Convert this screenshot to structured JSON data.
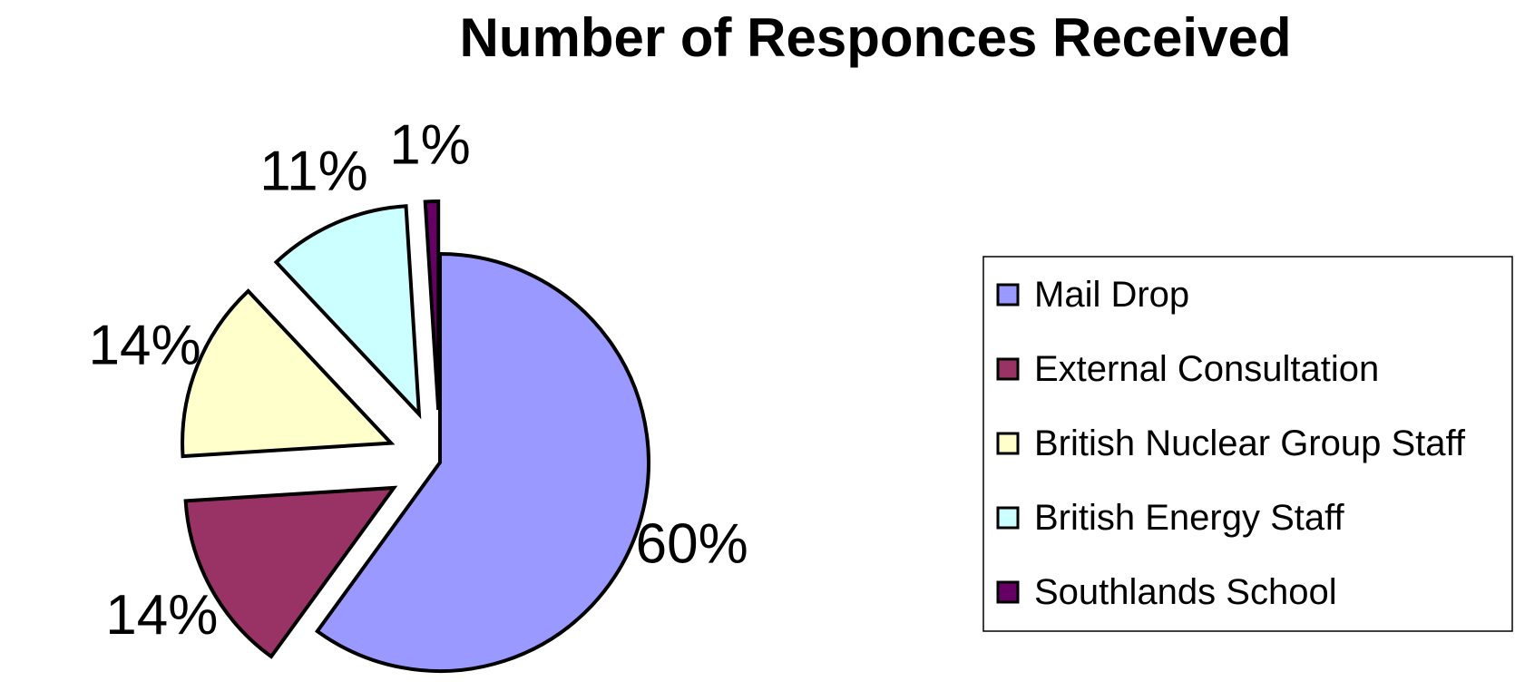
{
  "chart_data": {
    "type": "pie",
    "title": "Number of Responces Received",
    "exploded": true,
    "legend_position": "right",
    "categories": [
      "Mail Drop",
      "External Consultation",
      "British Nuclear Group Staff",
      "British Energy Staff",
      "Southlands School"
    ],
    "values": [
      60,
      14,
      14,
      11,
      1
    ],
    "labels": [
      "60%",
      "14%",
      "14%",
      "11%",
      "1%"
    ],
    "colors": [
      "#9999FF",
      "#993366",
      "#FFFFCC",
      "#CCFFFF",
      "#660066"
    ]
  }
}
